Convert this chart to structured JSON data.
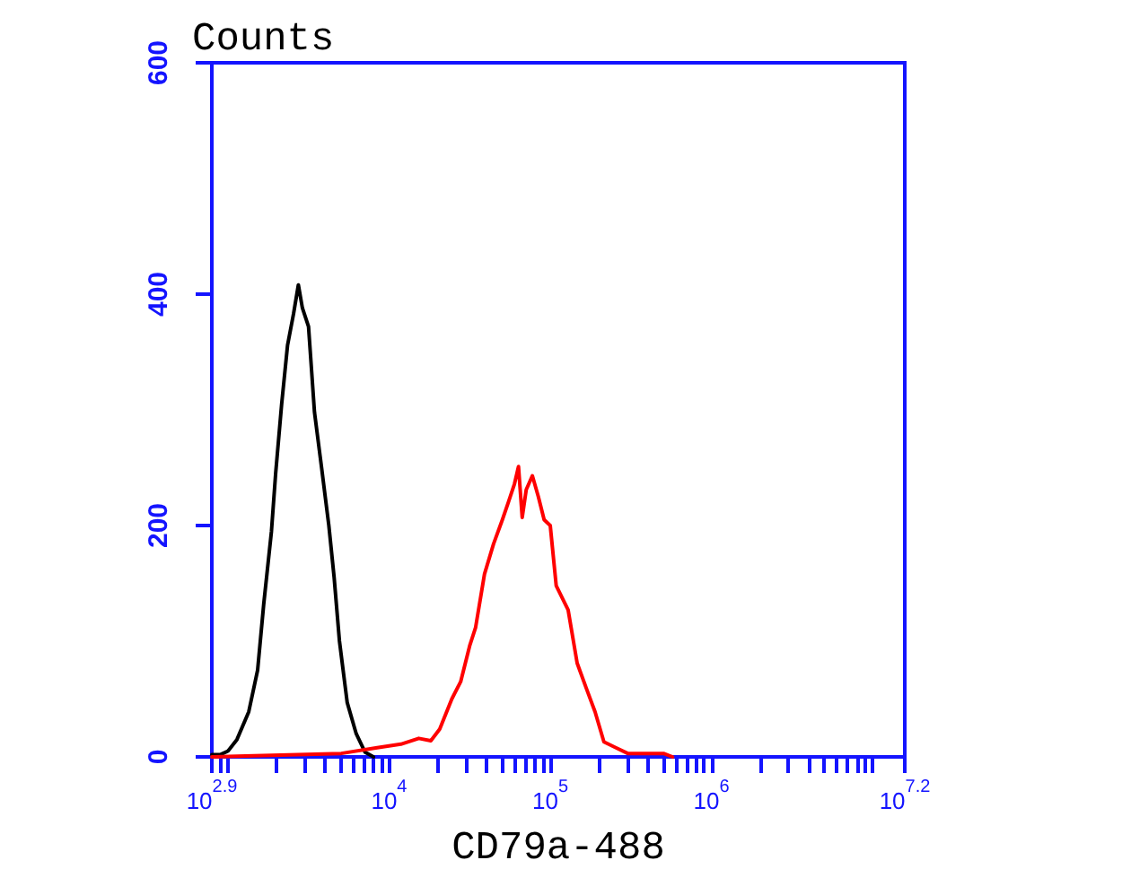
{
  "chart_data": {
    "type": "line",
    "xlabel": "CD79a-488",
    "ylabel": "Counts",
    "log": "x",
    "grid": false,
    "marker": "none",
    "line_style": "solid",
    "xlim": [
      794.3,
      15848932
    ],
    "xticks": [
      {
        "value": 794.3,
        "label": "10$^{2.9}$"
      },
      {
        "value": 900,
        "label": null
      },
      {
        "value": 1000,
        "label": null
      },
      {
        "value": 2000,
        "label": null
      },
      {
        "value": 3000,
        "label": null
      },
      {
        "value": 4000,
        "label": null
      },
      {
        "value": 5000,
        "label": null
      },
      {
        "value": 6000,
        "label": null
      },
      {
        "value": 7000,
        "label": null
      },
      {
        "value": 8000,
        "label": null
      },
      {
        "value": 9000,
        "label": null
      },
      {
        "value": 10000,
        "label": "10$^{4}$"
      },
      {
        "value": 20000,
        "label": null
      },
      {
        "value": 30000,
        "label": null
      },
      {
        "value": 40000,
        "label": null
      },
      {
        "value": 50000,
        "label": null
      },
      {
        "value": 60000,
        "label": null
      },
      {
        "value": 70000,
        "label": null
      },
      {
        "value": 80000,
        "label": null
      },
      {
        "value": 90000,
        "label": null
      },
      {
        "value": 100000,
        "label": "10$^{5}$"
      },
      {
        "value": 200000,
        "label": null
      },
      {
        "value": 300000,
        "label": null
      },
      {
        "value": 400000,
        "label": null
      },
      {
        "value": 500000,
        "label": null
      },
      {
        "value": 600000,
        "label": null
      },
      {
        "value": 700000,
        "label": null
      },
      {
        "value": 800000,
        "label": null
      },
      {
        "value": 900000,
        "label": null
      },
      {
        "value": 1000000,
        "label": "10$^{6}$"
      },
      {
        "value": 2000000,
        "label": null
      },
      {
        "value": 3000000,
        "label": null
      },
      {
        "value": 4000000,
        "label": null
      },
      {
        "value": 5000000,
        "label": null
      },
      {
        "value": 6000000,
        "label": null
      },
      {
        "value": 7000000,
        "label": null
      },
      {
        "value": 8000000,
        "label": null
      },
      {
        "value": 9000000,
        "label": null
      },
      {
        "value": 10000000,
        "label": null
      },
      {
        "value": 15848932,
        "label": "10$^{7.2}$"
      }
    ],
    "ylim": [
      0,
      600
    ],
    "yticks": [
      0,
      200,
      400,
      600
    ],
    "series": [
      {
        "color": "#000000",
        "x": [
          795,
          900,
          1000,
          1137,
          1346,
          1528,
          1667,
          1862,
          1977,
          2154,
          2344,
          2553,
          2735,
          2897,
          3162,
          3443,
          3811,
          4227,
          4560,
          4920,
          5495,
          6252,
          7096,
          8000
        ],
        "values": [
          2,
          2,
          5,
          15,
          39,
          75,
          132,
          195,
          245,
          305,
          356,
          383,
          408,
          388,
          372,
          298,
          250,
          200,
          155,
          100,
          47,
          20,
          4,
          0
        ]
      },
      {
        "color": "#ff0000",
        "x": [
          795,
          5047,
          8433,
          11830,
          15280,
          18160,
          20610,
          24490,
          27800,
          31620,
          34430,
          39080,
          44460,
          50470,
          54950,
          59980,
          63530,
          66990,
          70960,
          77450,
          84330,
          91620,
          100000,
          108900,
          129100,
          146900,
          166700,
          189700,
          215300,
          255300,
          302700,
          504700,
          574100
        ],
        "values": [
          0,
          3,
          8,
          11,
          16,
          14,
          24,
          50,
          65,
          96,
          112,
          158,
          184,
          205,
          220,
          236,
          251,
          207,
          231,
          243,
          225,
          205,
          200,
          148,
          127,
          81,
          60,
          39,
          13,
          8,
          3,
          3,
          0
        ]
      }
    ]
  }
}
